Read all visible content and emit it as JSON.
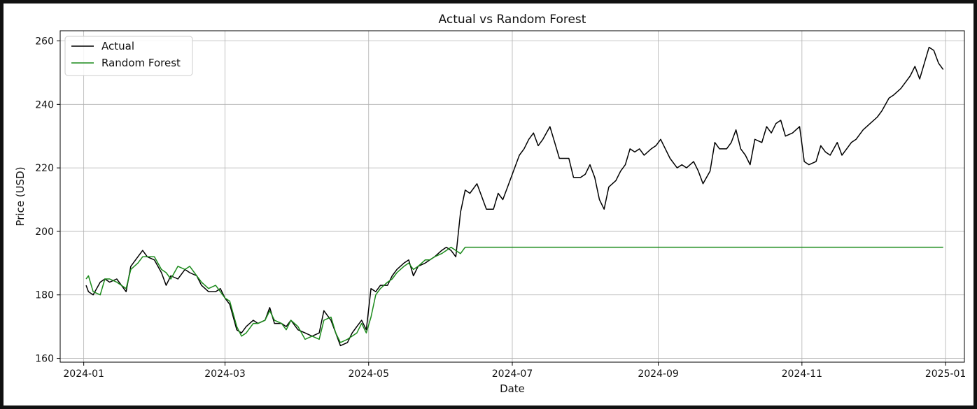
{
  "chart_data": {
    "type": "line",
    "title": "Actual vs Random Forest",
    "xlabel": "Date",
    "ylabel": "Price (USD)",
    "grid": true,
    "legend_position": "top-left",
    "x_range": [
      "2023-12-22",
      "2025-01-09"
    ],
    "ylim": [
      158.8,
      263.2
    ],
    "x_ticks": [
      "2024-01",
      "2024-03",
      "2024-05",
      "2024-07",
      "2024-09",
      "2024-11",
      "2025-01"
    ],
    "y_ticks": [
      160,
      180,
      200,
      220,
      240,
      260
    ],
    "series": [
      {
        "name": "Actual",
        "color": "#000000",
        "points": [
          [
            "2024-01-02",
            183
          ],
          [
            "2024-01-03",
            181
          ],
          [
            "2024-01-05",
            180
          ],
          [
            "2024-01-08",
            184
          ],
          [
            "2024-01-10",
            185
          ],
          [
            "2024-01-12",
            184
          ],
          [
            "2024-01-15",
            185
          ],
          [
            "2024-01-17",
            183
          ],
          [
            "2024-01-19",
            181
          ],
          [
            "2024-01-21",
            189
          ],
          [
            "2024-01-24",
            192
          ],
          [
            "2024-01-26",
            194
          ],
          [
            "2024-01-28",
            192
          ],
          [
            "2024-01-31",
            191
          ],
          [
            "2024-02-03",
            187
          ],
          [
            "2024-02-05",
            183
          ],
          [
            "2024-02-07",
            186
          ],
          [
            "2024-02-10",
            185
          ],
          [
            "2024-02-13",
            188
          ],
          [
            "2024-02-15",
            187
          ],
          [
            "2024-02-18",
            186
          ],
          [
            "2024-02-20",
            183
          ],
          [
            "2024-02-23",
            181
          ],
          [
            "2024-02-26",
            181
          ],
          [
            "2024-02-28",
            182
          ],
          [
            "2024-03-01",
            179
          ],
          [
            "2024-03-03",
            177
          ],
          [
            "2024-03-06",
            169
          ],
          [
            "2024-03-08",
            168
          ],
          [
            "2024-03-10",
            170
          ],
          [
            "2024-03-13",
            172
          ],
          [
            "2024-03-15",
            171
          ],
          [
            "2024-03-18",
            172
          ],
          [
            "2024-03-20",
            176
          ],
          [
            "2024-03-22",
            171
          ],
          [
            "2024-03-25",
            171
          ],
          [
            "2024-03-27",
            170
          ],
          [
            "2024-03-29",
            172
          ],
          [
            "2024-04-01",
            169
          ],
          [
            "2024-04-04",
            168
          ],
          [
            "2024-04-07",
            167
          ],
          [
            "2024-04-10",
            168
          ],
          [
            "2024-04-12",
            175
          ],
          [
            "2024-04-15",
            172
          ],
          [
            "2024-04-17",
            168
          ],
          [
            "2024-04-19",
            164
          ],
          [
            "2024-04-22",
            165
          ],
          [
            "2024-04-24",
            168
          ],
          [
            "2024-04-26",
            170
          ],
          [
            "2024-04-28",
            172
          ],
          [
            "2024-04-30",
            169
          ],
          [
            "2024-05-02",
            182
          ],
          [
            "2024-05-04",
            181
          ],
          [
            "2024-05-06",
            183
          ],
          [
            "2024-05-09",
            183
          ],
          [
            "2024-05-11",
            186
          ],
          [
            "2024-05-13",
            188
          ],
          [
            "2024-05-16",
            190
          ],
          [
            "2024-05-18",
            191
          ],
          [
            "2024-05-20",
            186
          ],
          [
            "2024-05-22",
            189
          ],
          [
            "2024-05-25",
            190
          ],
          [
            "2024-05-27",
            191
          ],
          [
            "2024-05-29",
            192
          ],
          [
            "2024-06-01",
            194
          ],
          [
            "2024-06-03",
            195
          ],
          [
            "2024-06-05",
            194
          ],
          [
            "2024-06-07",
            192
          ],
          [
            "2024-06-09",
            206
          ],
          [
            "2024-06-11",
            213
          ],
          [
            "2024-06-13",
            212
          ],
          [
            "2024-06-16",
            215
          ],
          [
            "2024-06-18",
            211
          ],
          [
            "2024-06-20",
            207
          ],
          [
            "2024-06-23",
            207
          ],
          [
            "2024-06-25",
            212
          ],
          [
            "2024-06-27",
            210
          ],
          [
            "2024-06-29",
            214
          ],
          [
            "2024-07-01",
            218
          ],
          [
            "2024-07-04",
            224
          ],
          [
            "2024-07-06",
            226
          ],
          [
            "2024-07-08",
            229
          ],
          [
            "2024-07-10",
            231
          ],
          [
            "2024-07-12",
            227
          ],
          [
            "2024-07-14",
            229
          ],
          [
            "2024-07-17",
            233
          ],
          [
            "2024-07-19",
            228
          ],
          [
            "2024-07-21",
            223
          ],
          [
            "2024-07-23",
            223
          ],
          [
            "2024-07-25",
            223
          ],
          [
            "2024-07-27",
            217
          ],
          [
            "2024-07-30",
            217
          ],
          [
            "2024-08-01",
            218
          ],
          [
            "2024-08-03",
            221
          ],
          [
            "2024-08-05",
            217
          ],
          [
            "2024-08-07",
            210
          ],
          [
            "2024-08-09",
            207
          ],
          [
            "2024-08-11",
            214
          ],
          [
            "2024-08-14",
            216
          ],
          [
            "2024-08-16",
            219
          ],
          [
            "2024-08-18",
            221
          ],
          [
            "2024-08-20",
            226
          ],
          [
            "2024-08-22",
            225
          ],
          [
            "2024-08-24",
            226
          ],
          [
            "2024-08-26",
            224
          ],
          [
            "2024-08-29",
            226
          ],
          [
            "2024-08-31",
            227
          ],
          [
            "2024-09-02",
            229
          ],
          [
            "2024-09-04",
            226
          ],
          [
            "2024-09-06",
            223
          ],
          [
            "2024-09-09",
            220
          ],
          [
            "2024-09-11",
            221
          ],
          [
            "2024-09-13",
            220
          ],
          [
            "2024-09-16",
            222
          ],
          [
            "2024-09-18",
            219
          ],
          [
            "2024-09-20",
            215
          ],
          [
            "2024-09-23",
            219
          ],
          [
            "2024-09-25",
            228
          ],
          [
            "2024-09-27",
            226
          ],
          [
            "2024-09-30",
            226
          ],
          [
            "2024-10-02",
            228
          ],
          [
            "2024-10-04",
            232
          ],
          [
            "2024-10-06",
            226
          ],
          [
            "2024-10-08",
            224
          ],
          [
            "2024-10-10",
            221
          ],
          [
            "2024-10-12",
            229
          ],
          [
            "2024-10-15",
            228
          ],
          [
            "2024-10-17",
            233
          ],
          [
            "2024-10-19",
            231
          ],
          [
            "2024-10-21",
            234
          ],
          [
            "2024-10-23",
            235
          ],
          [
            "2024-10-25",
            230
          ],
          [
            "2024-10-28",
            231
          ],
          [
            "2024-10-31",
            233
          ],
          [
            "2024-11-02",
            222
          ],
          [
            "2024-11-04",
            221
          ],
          [
            "2024-11-07",
            222
          ],
          [
            "2024-11-09",
            227
          ],
          [
            "2024-11-11",
            225
          ],
          [
            "2024-11-13",
            224
          ],
          [
            "2024-11-16",
            228
          ],
          [
            "2024-11-18",
            224
          ],
          [
            "2024-11-20",
            226
          ],
          [
            "2024-11-22",
            228
          ],
          [
            "2024-11-24",
            229
          ],
          [
            "2024-11-27",
            232
          ],
          [
            "2024-11-30",
            234
          ],
          [
            "2024-12-03",
            236
          ],
          [
            "2024-12-05",
            238
          ],
          [
            "2024-12-08",
            242
          ],
          [
            "2024-12-10",
            243
          ],
          [
            "2024-12-13",
            245
          ],
          [
            "2024-12-15",
            247
          ],
          [
            "2024-12-17",
            249
          ],
          [
            "2024-12-19",
            252
          ],
          [
            "2024-12-21",
            248
          ],
          [
            "2024-12-23",
            253
          ],
          [
            "2024-12-25",
            258
          ],
          [
            "2024-12-27",
            257
          ],
          [
            "2024-12-29",
            253
          ],
          [
            "2024-12-31",
            251
          ]
        ]
      },
      {
        "name": "Random Forest",
        "color": "#1a8a1a",
        "points": [
          [
            "2024-01-02",
            185
          ],
          [
            "2024-01-03",
            186
          ],
          [
            "2024-01-05",
            181
          ],
          [
            "2024-01-08",
            180
          ],
          [
            "2024-01-10",
            185
          ],
          [
            "2024-01-12",
            185
          ],
          [
            "2024-01-15",
            184
          ],
          [
            "2024-01-17",
            183
          ],
          [
            "2024-01-19",
            182
          ],
          [
            "2024-01-21",
            188
          ],
          [
            "2024-01-24",
            190
          ],
          [
            "2024-01-26",
            192
          ],
          [
            "2024-01-28",
            192
          ],
          [
            "2024-01-31",
            192
          ],
          [
            "2024-02-03",
            188
          ],
          [
            "2024-02-05",
            187
          ],
          [
            "2024-02-07",
            185
          ],
          [
            "2024-02-10",
            189
          ],
          [
            "2024-02-13",
            188
          ],
          [
            "2024-02-15",
            189
          ],
          [
            "2024-02-18",
            186
          ],
          [
            "2024-02-20",
            184
          ],
          [
            "2024-02-23",
            182
          ],
          [
            "2024-02-26",
            183
          ],
          [
            "2024-02-28",
            181
          ],
          [
            "2024-03-01",
            179
          ],
          [
            "2024-03-03",
            178
          ],
          [
            "2024-03-06",
            170
          ],
          [
            "2024-03-08",
            167
          ],
          [
            "2024-03-10",
            168
          ],
          [
            "2024-03-13",
            171
          ],
          [
            "2024-03-15",
            171
          ],
          [
            "2024-03-18",
            172
          ],
          [
            "2024-03-20",
            175
          ],
          [
            "2024-03-22",
            172
          ],
          [
            "2024-03-25",
            171
          ],
          [
            "2024-03-27",
            169
          ],
          [
            "2024-03-29",
            172
          ],
          [
            "2024-04-01",
            170
          ],
          [
            "2024-04-04",
            166
          ],
          [
            "2024-04-07",
            167
          ],
          [
            "2024-04-10",
            166
          ],
          [
            "2024-04-12",
            172
          ],
          [
            "2024-04-15",
            173
          ],
          [
            "2024-04-17",
            168
          ],
          [
            "2024-04-19",
            165
          ],
          [
            "2024-04-22",
            166
          ],
          [
            "2024-04-24",
            167
          ],
          [
            "2024-04-26",
            168
          ],
          [
            "2024-04-28",
            171
          ],
          [
            "2024-04-30",
            168
          ],
          [
            "2024-05-02",
            173
          ],
          [
            "2024-05-04",
            180
          ],
          [
            "2024-05-06",
            182
          ],
          [
            "2024-05-09",
            184
          ],
          [
            "2024-05-11",
            185
          ],
          [
            "2024-05-13",
            187
          ],
          [
            "2024-05-16",
            189
          ],
          [
            "2024-05-18",
            190
          ],
          [
            "2024-05-20",
            188
          ],
          [
            "2024-05-22",
            189
          ],
          [
            "2024-05-25",
            191
          ],
          [
            "2024-05-27",
            191
          ],
          [
            "2024-05-29",
            192
          ],
          [
            "2024-06-01",
            193
          ],
          [
            "2024-06-03",
            194
          ],
          [
            "2024-06-05",
            195
          ],
          [
            "2024-06-07",
            194
          ],
          [
            "2024-06-09",
            193
          ],
          [
            "2024-06-11",
            195
          ],
          [
            "2024-06-13",
            195
          ],
          [
            "2024-12-31",
            195
          ]
        ]
      }
    ]
  }
}
